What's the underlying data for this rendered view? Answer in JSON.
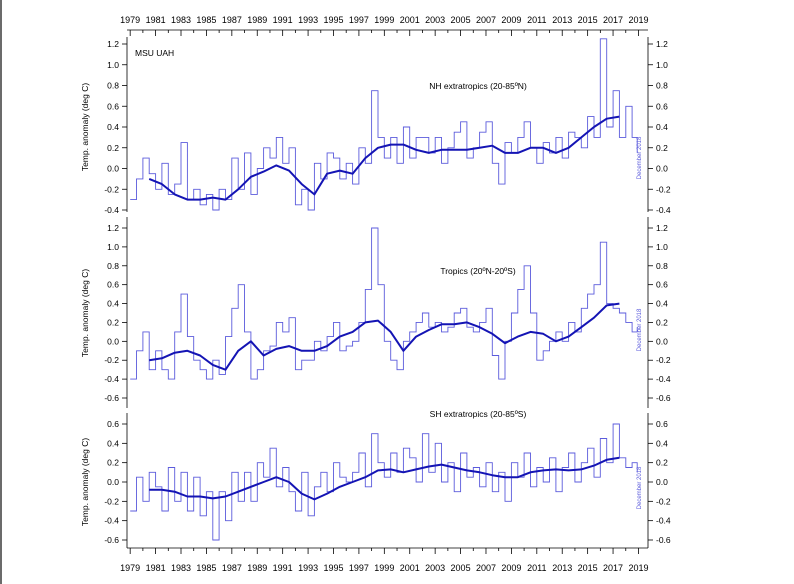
{
  "figure": {
    "source_label": "MSU UAH",
    "date_stamp": "December 2018",
    "ylabel": "Temp. anomaly (deg C)",
    "x_ticks": [
      "1979",
      "1981",
      "1983",
      "1985",
      "1987",
      "1989",
      "1991",
      "1993",
      "1995",
      "1997",
      "1999",
      "2001",
      "2003",
      "2005",
      "2007",
      "2009",
      "2011",
      "2013",
      "2015",
      "2017",
      "2019"
    ],
    "colors": {
      "monthly": "#5b5bdc",
      "smoothed": "#1414b4",
      "axes": "#000000"
    }
  },
  "chart_data": [
    {
      "type": "line",
      "title": "NH extratropics (20-85ºN)",
      "ylabel": "Temp. anomaly (deg C)",
      "xlim": [
        1978.75,
        2019.75
      ],
      "ylim": [
        -0.4,
        1.2
      ],
      "y_ticks": [
        "-0.4",
        "-0.2",
        "0.0",
        "0.2",
        "0.4",
        "0.6",
        "0.8",
        "1.0",
        "1.2"
      ],
      "grid": false,
      "series": [
        {
          "style": "monthly",
          "x": [
            1979,
            1979.5,
            1980,
            1980.5,
            1981,
            1981.5,
            1982,
            1982.5,
            1983,
            1983.5,
            1984,
            1984.5,
            1985,
            1985.5,
            1986,
            1986.5,
            1987,
            1987.5,
            1988,
            1988.5,
            1989,
            1989.5,
            1990,
            1990.5,
            1991,
            1991.5,
            1992,
            1992.5,
            1993,
            1993.5,
            1994,
            1994.5,
            1995,
            1995.5,
            1996,
            1996.5,
            1997,
            1997.5,
            1998,
            1998.5,
            1999,
            1999.5,
            2000,
            2000.5,
            2001,
            2001.5,
            2002,
            2002.5,
            2003,
            2003.5,
            2004,
            2004.5,
            2005,
            2005.5,
            2006,
            2006.5,
            2007,
            2007.5,
            2008,
            2008.5,
            2009,
            2009.5,
            2010,
            2010.5,
            2011,
            2011.5,
            2012,
            2012.5,
            2013,
            2013.5,
            2014,
            2014.5,
            2015,
            2015.5,
            2016,
            2016.5,
            2017,
            2017.5,
            2018,
            2018.5,
            2018.9
          ],
          "y": [
            -0.3,
            -0.1,
            0.1,
            -0.05,
            -0.2,
            0.05,
            -0.25,
            -0.15,
            0.25,
            -0.3,
            -0.2,
            -0.35,
            -0.25,
            -0.4,
            -0.2,
            -0.3,
            0.1,
            -0.2,
            0.15,
            -0.25,
            0.0,
            0.2,
            0.1,
            0.3,
            0.05,
            0.2,
            -0.35,
            -0.2,
            -0.4,
            0.05,
            -0.1,
            0.15,
            0.1,
            -0.1,
            0.05,
            -0.15,
            0.2,
            0.05,
            0.75,
            0.3,
            0.1,
            0.3,
            0.05,
            0.4,
            0.1,
            0.3,
            0.3,
            0.15,
            0.3,
            0.05,
            0.2,
            0.35,
            0.45,
            0.1,
            0.2,
            0.35,
            0.45,
            0.05,
            -0.15,
            0.25,
            0.15,
            0.3,
            0.45,
            0.2,
            0.05,
            0.25,
            0.15,
            0.3,
            0.1,
            0.35,
            0.3,
            0.2,
            0.5,
            0.3,
            1.25,
            0.4,
            0.75,
            0.3,
            0.6,
            0.3,
            0.15
          ]
        },
        {
          "style": "smoothed",
          "x": [
            1980.5,
            1981.5,
            1982.5,
            1983.5,
            1984.5,
            1985.5,
            1986.5,
            1987.5,
            1988.5,
            1989.5,
            1990.5,
            1991.5,
            1992.5,
            1993.5,
            1994.5,
            1995.5,
            1996.5,
            1997.5,
            1998.5,
            1999.5,
            2000.5,
            2001.5,
            2002.5,
            2003.5,
            2004.5,
            2005.5,
            2006.5,
            2007.5,
            2008.5,
            2009.5,
            2010.5,
            2011.5,
            2012.5,
            2013.5,
            2014.5,
            2015.5,
            2016.5,
            2017.5
          ],
          "y": [
            -0.1,
            -0.15,
            -0.25,
            -0.3,
            -0.3,
            -0.28,
            -0.3,
            -0.2,
            -0.08,
            -0.03,
            0.03,
            -0.02,
            -0.15,
            -0.25,
            -0.05,
            -0.02,
            -0.05,
            0.1,
            0.2,
            0.23,
            0.23,
            0.18,
            0.15,
            0.18,
            0.18,
            0.18,
            0.2,
            0.22,
            0.15,
            0.15,
            0.2,
            0.2,
            0.15,
            0.2,
            0.3,
            0.4,
            0.48,
            0.5
          ]
        }
      ]
    },
    {
      "type": "line",
      "title": "Tropics (20ºN-20ºS)",
      "ylabel": "Temp. anomaly (deg C)",
      "xlim": [
        1978.75,
        2019.75
      ],
      "ylim": [
        -0.6,
        1.2
      ],
      "y_ticks": [
        "-0.6",
        "-0.4",
        "-0.2",
        "0.0",
        "0.2",
        "0.4",
        "0.6",
        "0.8",
        "1.0",
        "1.2"
      ],
      "grid": false,
      "series": [
        {
          "style": "monthly",
          "x": [
            1979,
            1979.5,
            1980,
            1980.5,
            1981,
            1981.5,
            1982,
            1982.5,
            1983,
            1983.5,
            1984,
            1984.5,
            1985,
            1985.5,
            1986,
            1986.5,
            1987,
            1987.5,
            1988,
            1988.5,
            1989,
            1989.5,
            1990,
            1990.5,
            1991,
            1991.5,
            1992,
            1992.5,
            1993,
            1993.5,
            1994,
            1994.5,
            1995,
            1995.5,
            1996,
            1996.5,
            1997,
            1997.5,
            1998,
            1998.5,
            1999,
            1999.5,
            2000,
            2000.5,
            2001,
            2001.5,
            2002,
            2002.5,
            2003,
            2003.5,
            2004,
            2004.5,
            2005,
            2005.5,
            2006,
            2006.5,
            2007,
            2007.5,
            2008,
            2008.5,
            2009,
            2009.5,
            2010,
            2010.5,
            2011,
            2011.5,
            2012,
            2012.5,
            2013,
            2013.5,
            2014,
            2014.5,
            2015,
            2015.5,
            2016,
            2016.5,
            2017,
            2017.5,
            2018,
            2018.5,
            2018.9
          ],
          "y": [
            -0.4,
            -0.1,
            0.1,
            -0.3,
            -0.1,
            -0.3,
            -0.4,
            0.1,
            0.5,
            0.05,
            -0.2,
            -0.3,
            -0.4,
            -0.2,
            -0.35,
            0.05,
            0.35,
            0.6,
            0.1,
            -0.4,
            -0.3,
            -0.1,
            -0.05,
            0.2,
            0.1,
            0.25,
            -0.3,
            -0.2,
            -0.2,
            0.0,
            -0.1,
            0.05,
            0.2,
            -0.1,
            -0.05,
            0.0,
            0.2,
            0.55,
            1.2,
            0.6,
            0.0,
            -0.2,
            -0.3,
            0.0,
            0.1,
            0.2,
            0.3,
            0.15,
            0.2,
            0.1,
            0.15,
            0.3,
            0.35,
            0.15,
            0.1,
            0.2,
            0.35,
            -0.15,
            -0.4,
            0.0,
            0.3,
            0.55,
            0.8,
            0.3,
            -0.2,
            -0.1,
            0.0,
            0.1,
            0.0,
            0.2,
            0.1,
            0.35,
            0.5,
            0.6,
            1.05,
            0.4,
            0.35,
            0.3,
            0.2,
            0.1,
            0.15
          ]
        },
        {
          "style": "smoothed",
          "x": [
            1980.5,
            1981.5,
            1982.5,
            1983.5,
            1984.5,
            1985.5,
            1986.5,
            1987.5,
            1988.5,
            1989.5,
            1990.5,
            1991.5,
            1992.5,
            1993.5,
            1994.5,
            1995.5,
            1996.5,
            1997.5,
            1998.5,
            1999.5,
            2000.5,
            2001.5,
            2002.5,
            2003.5,
            2004.5,
            2005.5,
            2006.5,
            2007.5,
            2008.5,
            2009.5,
            2010.5,
            2011.5,
            2012.5,
            2013.5,
            2014.5,
            2015.5,
            2016.5,
            2017.5
          ],
          "y": [
            -0.2,
            -0.18,
            -0.12,
            -0.1,
            -0.15,
            -0.25,
            -0.3,
            -0.1,
            0.0,
            -0.15,
            -0.08,
            -0.05,
            -0.1,
            -0.1,
            -0.05,
            0.05,
            0.1,
            0.2,
            0.22,
            0.1,
            -0.1,
            0.05,
            0.12,
            0.18,
            0.18,
            0.2,
            0.15,
            0.08,
            -0.02,
            0.05,
            0.1,
            0.08,
            0.0,
            0.05,
            0.15,
            0.25,
            0.38,
            0.4
          ]
        }
      ]
    },
    {
      "type": "line",
      "title": "SH extratropics (20-85ºS)",
      "ylabel": "Temp. anomaly (deg C)",
      "xlim": [
        1978.75,
        2019.75
      ],
      "ylim": [
        -0.6,
        0.6
      ],
      "y_ticks": [
        "-0.6",
        "-0.4",
        "-0.2",
        "0.0",
        "0.2",
        "0.4",
        "0.6"
      ],
      "grid": false,
      "series": [
        {
          "style": "monthly",
          "x": [
            1979,
            1979.5,
            1980,
            1980.5,
            1981,
            1981.5,
            1982,
            1982.5,
            1983,
            1983.5,
            1984,
            1984.5,
            1985,
            1985.5,
            1986,
            1986.5,
            1987,
            1987.5,
            1988,
            1988.5,
            1989,
            1989.5,
            1990,
            1990.5,
            1991,
            1991.5,
            1992,
            1992.5,
            1993,
            1993.5,
            1994,
            1994.5,
            1995,
            1995.5,
            1996,
            1996.5,
            1997,
            1997.5,
            1998,
            1998.5,
            1999,
            1999.5,
            2000,
            2000.5,
            2001,
            2001.5,
            2002,
            2002.5,
            2003,
            2003.5,
            2004,
            2004.5,
            2005,
            2005.5,
            2006,
            2006.5,
            2007,
            2007.5,
            2008,
            2008.5,
            2009,
            2009.5,
            2010,
            2010.5,
            2011,
            2011.5,
            2012,
            2012.5,
            2013,
            2013.5,
            2014,
            2014.5,
            2015,
            2015.5,
            2016,
            2016.5,
            2017,
            2017.5,
            2018,
            2018.5,
            2018.9
          ],
          "y": [
            -0.3,
            0.05,
            -0.2,
            0.1,
            -0.05,
            -0.3,
            0.15,
            -0.2,
            0.1,
            -0.3,
            0.05,
            -0.35,
            -0.1,
            -0.6,
            -0.1,
            -0.4,
            0.1,
            -0.2,
            0.1,
            -0.2,
            0.2,
            0.05,
            0.35,
            -0.05,
            0.15,
            -0.1,
            -0.3,
            0.1,
            -0.35,
            -0.05,
            0.1,
            -0.1,
            0.2,
            0.05,
            0.0,
            0.1,
            0.3,
            -0.05,
            0.5,
            0.2,
            0.05,
            0.3,
            0.1,
            0.35,
            0.25,
            0.0,
            0.5,
            0.1,
            0.4,
            0.0,
            0.2,
            -0.1,
            0.3,
            0.05,
            0.15,
            -0.05,
            0.2,
            -0.1,
            0.1,
            -0.2,
            0.2,
            0.05,
            0.3,
            -0.05,
            0.15,
            0.0,
            0.25,
            -0.1,
            0.15,
            0.3,
            0.0,
            0.2,
            0.35,
            0.05,
            0.45,
            0.2,
            0.6,
            0.25,
            0.15,
            0.2,
            0.1
          ]
        },
        {
          "style": "smoothed",
          "x": [
            1980.5,
            1981.5,
            1982.5,
            1983.5,
            1984.5,
            1985.5,
            1986.5,
            1987.5,
            1988.5,
            1989.5,
            1990.5,
            1991.5,
            1992.5,
            1993.5,
            1994.5,
            1995.5,
            1996.5,
            1997.5,
            1998.5,
            1999.5,
            2000.5,
            2001.5,
            2002.5,
            2003.5,
            2004.5,
            2005.5,
            2006.5,
            2007.5,
            2008.5,
            2009.5,
            2010.5,
            2011.5,
            2012.5,
            2013.5,
            2014.5,
            2015.5,
            2016.5,
            2017.5
          ],
          "y": [
            -0.08,
            -0.08,
            -0.1,
            -0.15,
            -0.15,
            -0.17,
            -0.15,
            -0.1,
            -0.05,
            0.0,
            0.05,
            0.0,
            -0.12,
            -0.18,
            -0.12,
            -0.05,
            0.0,
            0.05,
            0.12,
            0.13,
            0.1,
            0.13,
            0.16,
            0.18,
            0.15,
            0.12,
            0.1,
            0.07,
            0.05,
            0.05,
            0.1,
            0.12,
            0.13,
            0.12,
            0.13,
            0.17,
            0.23,
            0.25
          ]
        }
      ]
    }
  ]
}
